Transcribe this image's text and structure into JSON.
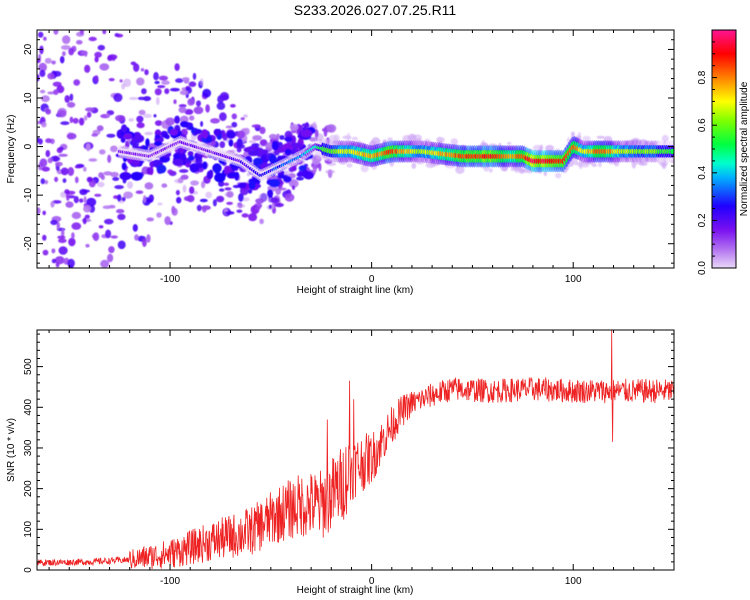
{
  "title": "S233.2026.027.07.25.R11",
  "chart_data": [
    {
      "type": "heatmap",
      "name": "spectrogram",
      "xlabel": "Height of straight line (km)",
      "ylabel": "Frequency (Hz)",
      "xlim": [
        -166,
        150
      ],
      "ylim": [
        -25,
        24
      ],
      "xticks": [
        -100,
        0,
        100
      ],
      "yticks": [
        -20,
        -10,
        0,
        10,
        20
      ],
      "colorbar": {
        "label": "Normalized spectral amplitude",
        "range": [
          0.0,
          1.0
        ],
        "ticks": [
          0.0,
          0.2,
          0.4,
          0.6,
          0.8
        ],
        "tick_labels": [
          "0.0",
          "0.2",
          "0.4",
          "0.6",
          "0.8"
        ],
        "colors": [
          "#e6d6f6",
          "#8000ff",
          "#0000ff",
          "#00ffff",
          "#00ff00",
          "#ffff00",
          "#ff8000",
          "#ff0000",
          "#ff0099"
        ]
      },
      "ridge": {
        "x": [
          -125,
          -110,
          -95,
          -80,
          -65,
          -55,
          -45,
          -35,
          -28,
          -20,
          -10,
          0,
          10,
          25,
          45,
          60,
          70,
          75,
          80,
          90,
          95,
          100,
          105,
          115,
          125,
          140,
          150
        ],
        "y": [
          -1,
          -2,
          1,
          -1,
          -3,
          -6,
          -4,
          -2,
          0,
          -1,
          -1,
          -2,
          -1,
          -1,
          -2,
          -2,
          -2,
          -2,
          -3,
          -3,
          -3,
          0,
          -1,
          -1,
          -1,
          -1,
          -1
        ],
        "amplitude": [
          0.15,
          0.12,
          0.15,
          0.15,
          0.2,
          0.25,
          0.3,
          0.35,
          0.45,
          0.6,
          0.7,
          0.75,
          0.85,
          0.65,
          0.85,
          0.9,
          0.75,
          0.85,
          0.95,
          0.9,
          0.85,
          0.8,
          0.7,
          0.85,
          0.65,
          0.6,
          0.55
        ]
      }
    },
    {
      "type": "line",
      "name": "snr",
      "xlabel": "Height of straight line (km)",
      "ylabel": "SNR (10 * v/v)",
      "xlim": [
        -166,
        150
      ],
      "ylim": [
        0,
        590
      ],
      "xticks": [
        -100,
        0,
        100
      ],
      "yticks": [
        0,
        100,
        200,
        300,
        400,
        500
      ],
      "color": "#ee2222",
      "trend": {
        "x": [
          -166,
          -140,
          -120,
          -100,
          -80,
          -60,
          -45,
          -35,
          -25,
          -15,
          -10,
          0,
          5,
          10,
          15,
          20,
          30,
          40,
          60,
          80,
          100,
          118,
          125,
          150
        ],
        "y": [
          18,
          20,
          25,
          40,
          70,
          95,
          140,
          160,
          160,
          210,
          250,
          275,
          315,
          355,
          390,
          410,
          430,
          445,
          440,
          445,
          440,
          440,
          440,
          440
        ]
      },
      "spikes": [
        {
          "x": -11,
          "y": 465
        },
        {
          "x": -9,
          "y": 420
        },
        {
          "x": -22,
          "y": 370
        },
        {
          "x": 119,
          "y": 590
        },
        {
          "x": 119.5,
          "y": 315
        }
      ]
    }
  ]
}
